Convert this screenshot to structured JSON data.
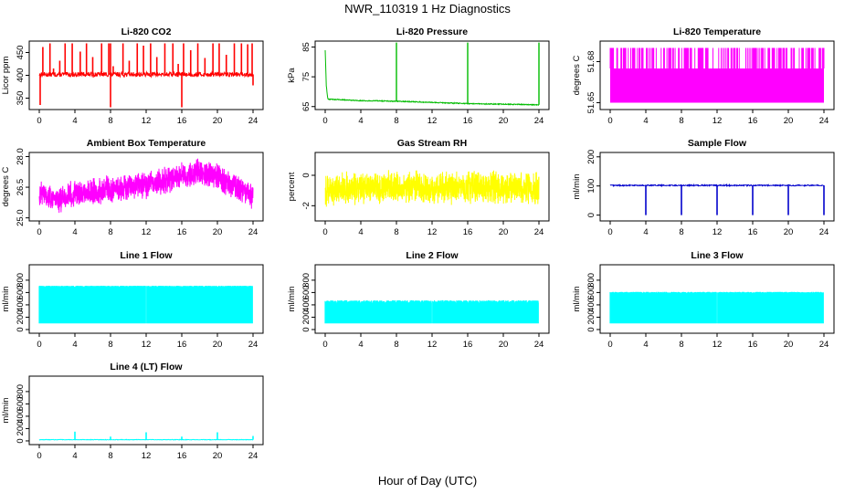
{
  "figure": {
    "title": "NWR_110319  1 Hz Diagnostics",
    "xlabel": "Hour of Day (UTC)"
  },
  "chart_data": [
    {
      "type": "line",
      "title": "Li-820 CO2",
      "ylabel": "Licor ppm",
      "color": "#ff0000",
      "xlim": [
        0,
        24
      ],
      "xticks": [
        0,
        4,
        8,
        12,
        16,
        20,
        24
      ],
      "ylim": [
        325,
        475
      ],
      "yticks": [
        350,
        400,
        450
      ],
      "ytick_labels": [
        "350",
        "400",
        "450"
      ],
      "series": [
        {
          "pattern": "baseline_spikes",
          "baseline": 402,
          "noise": 5,
          "spikes_up": [
            [
              0.4,
              462
            ],
            [
              1.2,
              470
            ],
            [
              1.6,
              415
            ],
            [
              2.3,
              432
            ],
            [
              2.9,
              470
            ],
            [
              3.7,
              470
            ],
            [
              4.6,
              452
            ],
            [
              5.3,
              470
            ],
            [
              6.0,
              440
            ],
            [
              7.0,
              470
            ],
            [
              7.8,
              470
            ],
            [
              8.0,
              470
            ],
            [
              8.3,
              420
            ],
            [
              9.4,
              470
            ],
            [
              10.1,
              432
            ],
            [
              11.0,
              470
            ],
            [
              11.7,
              465
            ],
            [
              12.5,
              470
            ],
            [
              13.2,
              440
            ],
            [
              14.1,
              470
            ],
            [
              15.0,
              470
            ],
            [
              15.6,
              425
            ],
            [
              16.2,
              470
            ],
            [
              17.0,
              455
            ],
            [
              17.8,
              470
            ],
            [
              18.6,
              438
            ],
            [
              19.5,
              470
            ],
            [
              20.2,
              470
            ],
            [
              21.0,
              445
            ],
            [
              21.9,
              470
            ],
            [
              22.7,
              470
            ],
            [
              23.4,
              468
            ],
            [
              23.9,
              470
            ]
          ],
          "spikes_down": [
            [
              0.1,
              335
            ],
            [
              8.0,
              330
            ],
            [
              16.0,
              330
            ],
            [
              24.0,
              378
            ]
          ]
        }
      ]
    },
    {
      "type": "line",
      "title": "Li-820 Pressure",
      "ylabel": "kPa",
      "color": "#00bb00",
      "xlim": [
        0,
        24
      ],
      "xticks": [
        0,
        4,
        8,
        12,
        16,
        20,
        24
      ],
      "ylim": [
        64,
        87
      ],
      "yticks": [
        65,
        75,
        85
      ],
      "ytick_labels": [
        "65",
        "75",
        "85"
      ],
      "series": [
        {
          "pattern": "decay_spikes",
          "points": [
            [
              0.0,
              84
            ],
            [
              0.12,
              72
            ],
            [
              0.3,
              67.5
            ],
            [
              4,
              67.0
            ],
            [
              8,
              66.8
            ],
            [
              12,
              66.4
            ],
            [
              16,
              66.0
            ],
            [
              20,
              65.8
            ],
            [
              24,
              65.6
            ]
          ],
          "spikes_up": [
            [
              8.0,
              86.5
            ],
            [
              16.0,
              86.5
            ],
            [
              24.0,
              86.5
            ]
          ]
        }
      ]
    },
    {
      "type": "line",
      "title": "Li-820 Temperature",
      "ylabel": "degrees C",
      "color": "#ff00ff",
      "xlim": [
        0,
        24
      ],
      "xticks": [
        0,
        4,
        8,
        12,
        16,
        20,
        24
      ],
      "ylim": [
        51.645,
        51.695
      ],
      "yticks": [
        51.65,
        51.68
      ],
      "ytick_labels": [
        "51.65",
        "51.68"
      ],
      "series": [
        {
          "pattern": "band_spikes",
          "low": 51.65,
          "high": 51.675,
          "spike_top": 51.69,
          "spike_density": 0.55
        }
      ]
    },
    {
      "type": "line",
      "title": "Ambient Box Temperature",
      "ylabel": "degrees C",
      "color": "#ff00ff",
      "xlim": [
        0,
        24
      ],
      "xticks": [
        0,
        4,
        8,
        12,
        16,
        20,
        24
      ],
      "ylim": [
        24.85,
        28.2
      ],
      "yticks": [
        25.0,
        26.5,
        28.0
      ],
      "ytick_labels": [
        "25.0",
        "26.5",
        "28.0"
      ],
      "series": [
        {
          "pattern": "noisy_trend",
          "center": [
            [
              0,
              26.1
            ],
            [
              2,
              25.9
            ],
            [
              4,
              26.2
            ],
            [
              8,
              26.4
            ],
            [
              12,
              26.6
            ],
            [
              15,
              26.9
            ],
            [
              18,
              27.3
            ],
            [
              20,
              27.0
            ],
            [
              22,
              26.5
            ],
            [
              24,
              26.0
            ]
          ],
          "amplitude": 0.6
        }
      ]
    },
    {
      "type": "line",
      "title": "Gas Stream RH",
      "ylabel": "percent",
      "color": "#ffff00",
      "xlim": [
        0,
        24
      ],
      "xticks": [
        0,
        4,
        8,
        12,
        16,
        20,
        24
      ],
      "ylim": [
        -3.0,
        1.5
      ],
      "yticks": [
        -2,
        0
      ],
      "ytick_labels": [
        "-2",
        "0"
      ],
      "series": [
        {
          "pattern": "noisy_trend",
          "center": [
            [
              0,
              -0.9
            ],
            [
              6,
              -0.8
            ],
            [
              12,
              -0.8
            ],
            [
              18,
              -0.8
            ],
            [
              24,
              -0.9
            ]
          ],
          "amplitude": 1.0
        }
      ]
    },
    {
      "type": "line",
      "title": "Sample Flow",
      "ylabel": "ml/min",
      "color": "#0000cc",
      "xlim": [
        0,
        24
      ],
      "xticks": [
        0,
        4,
        8,
        12,
        16,
        20,
        24
      ],
      "ylim": [
        -20,
        215
      ],
      "yticks": [
        0,
        100,
        200
      ],
      "ytick_labels": [
        "0",
        "100",
        "200"
      ],
      "series": [
        {
          "pattern": "baseline_spikes",
          "baseline": 102,
          "noise": 2,
          "spikes_up": [],
          "spikes_down": [
            [
              4.0,
              0
            ],
            [
              8.0,
              0
            ],
            [
              12.0,
              0
            ],
            [
              16.0,
              0
            ],
            [
              20.0,
              0
            ],
            [
              24.0,
              0
            ]
          ]
        }
      ]
    },
    {
      "type": "line",
      "title": "Line 1 Flow",
      "ylabel": "ml/min",
      "color": "#00ffff",
      "xlim": [
        0,
        24
      ],
      "xticks": [
        0,
        4,
        8,
        12,
        16,
        20,
        24
      ],
      "ylim": [
        -60,
        1050
      ],
      "yticks": [
        0,
        200,
        400,
        600,
        800
      ],
      "ytick_labels": [
        "0",
        "200",
        "400",
        "600",
        "800"
      ],
      "series": [
        {
          "pattern": "filled_band",
          "low": 100,
          "high": 700,
          "noise": 10,
          "gaps": [
            4.0,
            8.0,
            12.0,
            16.0,
            20.0,
            24.0
          ]
        }
      ]
    },
    {
      "type": "line",
      "title": "Line 2 Flow",
      "ylabel": "ml/min",
      "color": "#00ffff",
      "xlim": [
        0,
        24
      ],
      "xticks": [
        0,
        4,
        8,
        12,
        16,
        20,
        24
      ],
      "ylim": [
        -60,
        1050
      ],
      "yticks": [
        0,
        200,
        400,
        600,
        800
      ],
      "ytick_labels": [
        "0",
        "200",
        "400",
        "600",
        "800"
      ],
      "series": [
        {
          "pattern": "filled_band",
          "low": 100,
          "high": 450,
          "noise": 25,
          "gaps": [
            1.3,
            2.7,
            4.0,
            5.3,
            6.7,
            8.0,
            9.3,
            10.7,
            12.0,
            13.3,
            14.7,
            16.0,
            17.3,
            18.7,
            20.0,
            21.3,
            22.7,
            24.0
          ]
        }
      ]
    },
    {
      "type": "line",
      "title": "Line 3 Flow",
      "ylabel": "ml/min",
      "color": "#00ffff",
      "xlim": [
        0,
        24
      ],
      "xticks": [
        0,
        4,
        8,
        12,
        16,
        20,
        24
      ],
      "ylim": [
        -60,
        1050
      ],
      "yticks": [
        0,
        200,
        400,
        600,
        800
      ],
      "ytick_labels": [
        "0",
        "200",
        "400",
        "600",
        "800"
      ],
      "series": [
        {
          "pattern": "filled_band",
          "low": 100,
          "high": 600,
          "noise": 10,
          "gaps": [
            1.3,
            2.7,
            4.0,
            5.3,
            6.7,
            8.0,
            9.3,
            10.7,
            12.0,
            13.3,
            14.7,
            16.0,
            17.3,
            18.7,
            20.0,
            21.3,
            22.7,
            24.0
          ]
        }
      ]
    },
    {
      "type": "line",
      "title": "Line 4 (LT) Flow",
      "ylabel": "ml/min",
      "color": "#00ffff",
      "xlim": [
        0,
        24
      ],
      "xticks": [
        0,
        4,
        8,
        12,
        16,
        20,
        24
      ],
      "ylim": [
        -60,
        1050
      ],
      "yticks": [
        0,
        200,
        400,
        600,
        800
      ],
      "ytick_labels": [
        "0",
        "200",
        "400",
        "600",
        "800"
      ],
      "series": [
        {
          "pattern": "baseline_spikes",
          "baseline": 20,
          "noise": 4,
          "spikes_up": [
            [
              4.0,
              150
            ],
            [
              8.0,
              70
            ],
            [
              12.0,
              140
            ],
            [
              16.0,
              70
            ],
            [
              20.0,
              140
            ],
            [
              24.0,
              80
            ]
          ],
          "spikes_down": []
        }
      ]
    }
  ]
}
